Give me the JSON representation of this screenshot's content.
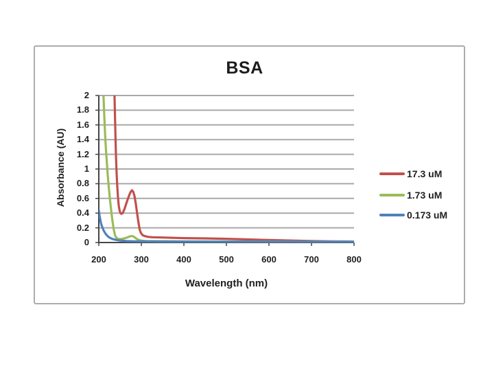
{
  "frame": {
    "border_color": "#acacac",
    "background": "#ffffff"
  },
  "chart_data": {
    "type": "line",
    "title": "BSA",
    "x_axis": {
      "label": "Wavelength (nm)",
      "min": 200,
      "max": 800,
      "tick_labels": [
        "200",
        "300",
        "400",
        "500",
        "600",
        "700",
        "800"
      ]
    },
    "y_axis": {
      "label": "Absorbance (AU)",
      "min": 0,
      "max": 2,
      "tick_labels": [
        "2",
        "1.8",
        "1.6",
        "1.4",
        "1.2",
        "1",
        "0.8",
        "0.6",
        "0.4",
        "0.2",
        "0"
      ]
    },
    "grid": "horizontal",
    "grid_color": "#a9a9a9",
    "axis_color": "#454545",
    "legend_position": "right",
    "series": [
      {
        "name": "17.3 uM",
        "color": "#c0504d",
        "points": [
          [
            237,
            2.0
          ],
          [
            238.5,
            1.6
          ],
          [
            240,
            1.25
          ],
          [
            241.5,
            1.0
          ],
          [
            243,
            0.8
          ],
          [
            245,
            0.62
          ],
          [
            247,
            0.5
          ],
          [
            249,
            0.43
          ],
          [
            251,
            0.4
          ],
          [
            253,
            0.39
          ],
          [
            256,
            0.4
          ],
          [
            260,
            0.45
          ],
          [
            264,
            0.52
          ],
          [
            268,
            0.59
          ],
          [
            272,
            0.65
          ],
          [
            275,
            0.69
          ],
          [
            278,
            0.71
          ],
          [
            281,
            0.69
          ],
          [
            284,
            0.63
          ],
          [
            287,
            0.53
          ],
          [
            290,
            0.4
          ],
          [
            293,
            0.28
          ],
          [
            296,
            0.18
          ],
          [
            299,
            0.13
          ],
          [
            303,
            0.1
          ],
          [
            308,
            0.088
          ],
          [
            315,
            0.078
          ],
          [
            325,
            0.072
          ],
          [
            350,
            0.068
          ],
          [
            400,
            0.06
          ],
          [
            450,
            0.056
          ],
          [
            500,
            0.05
          ],
          [
            550,
            0.042
          ],
          [
            600,
            0.034
          ],
          [
            650,
            0.027
          ],
          [
            700,
            0.021
          ],
          [
            750,
            0.016
          ],
          [
            800,
            0.013
          ]
        ]
      },
      {
        "name": "1.73 uM",
        "color": "#9bbb59",
        "points": [
          [
            211,
            2.0
          ],
          [
            213,
            1.7
          ],
          [
            215,
            1.45
          ],
          [
            217,
            1.25
          ],
          [
            219,
            1.08
          ],
          [
            221,
            0.92
          ],
          [
            223,
            0.78
          ],
          [
            226,
            0.6
          ],
          [
            229,
            0.44
          ],
          [
            232,
            0.3
          ],
          [
            235,
            0.18
          ],
          [
            238,
            0.1
          ],
          [
            241,
            0.065
          ],
          [
            245,
            0.05
          ],
          [
            250,
            0.046
          ],
          [
            256,
            0.05
          ],
          [
            262,
            0.06
          ],
          [
            268,
            0.072
          ],
          [
            273,
            0.083
          ],
          [
            277,
            0.088
          ],
          [
            281,
            0.083
          ],
          [
            285,
            0.068
          ],
          [
            289,
            0.05
          ],
          [
            294,
            0.035
          ],
          [
            300,
            0.026
          ],
          [
            310,
            0.021
          ],
          [
            330,
            0.019
          ],
          [
            400,
            0.016
          ],
          [
            500,
            0.014
          ],
          [
            600,
            0.013
          ],
          [
            700,
            0.012
          ],
          [
            800,
            0.012
          ]
        ]
      },
      {
        "name": "0.173 uM",
        "color": "#4f81bd",
        "points": [
          [
            200,
            0.44
          ],
          [
            202,
            0.36
          ],
          [
            204,
            0.295
          ],
          [
            206,
            0.245
          ],
          [
            209,
            0.195
          ],
          [
            212,
            0.158
          ],
          [
            215,
            0.128
          ],
          [
            218,
            0.104
          ],
          [
            221,
            0.086
          ],
          [
            225,
            0.068
          ],
          [
            229,
            0.056
          ],
          [
            234,
            0.045
          ],
          [
            240,
            0.036
          ],
          [
            247,
            0.029
          ],
          [
            255,
            0.024
          ],
          [
            265,
            0.02
          ],
          [
            280,
            0.017
          ],
          [
            300,
            0.015
          ],
          [
            350,
            0.013
          ],
          [
            400,
            0.012
          ],
          [
            500,
            0.011
          ],
          [
            600,
            0.011
          ],
          [
            700,
            0.011
          ],
          [
            800,
            0.011
          ]
        ]
      }
    ]
  }
}
